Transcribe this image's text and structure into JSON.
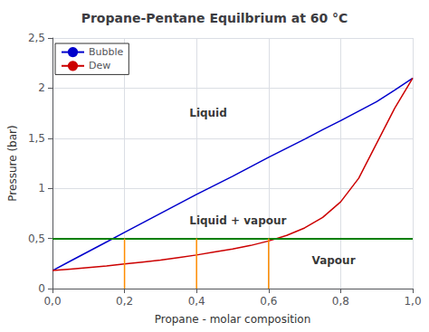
{
  "chart_data": {
    "type": "line",
    "title": "Propane-Pentane Equilbrium at 60 °C",
    "xlabel": "Propane - molar composition",
    "ylabel": "Pressure (bar)",
    "series": [
      {
        "name": "Bubble",
        "color": "#0000cc",
        "x": [
          0.0,
          0.05,
          0.1,
          0.15,
          0.2,
          0.25,
          0.3,
          0.35,
          0.4,
          0.45,
          0.5,
          0.55,
          0.6,
          0.65,
          0.7,
          0.75,
          0.8,
          0.85,
          0.9,
          0.95,
          1.0
        ],
        "values": [
          0.18,
          0.275,
          0.37,
          0.465,
          0.56,
          0.655,
          0.75,
          0.845,
          0.94,
          1.03,
          1.12,
          1.215,
          1.31,
          1.4,
          1.49,
          1.585,
          1.675,
          1.77,
          1.865,
          1.98,
          2.1
        ]
      },
      {
        "name": "Dew",
        "color": "#cc0000",
        "x": [
          0.0,
          0.05,
          0.1,
          0.15,
          0.2,
          0.25,
          0.3,
          0.35,
          0.4,
          0.45,
          0.5,
          0.55,
          0.6,
          0.65,
          0.7,
          0.75,
          0.8,
          0.85,
          0.9,
          0.95,
          1.0
        ],
        "values": [
          0.18,
          0.195,
          0.21,
          0.225,
          0.245,
          0.265,
          0.285,
          0.31,
          0.335,
          0.365,
          0.395,
          0.43,
          0.475,
          0.53,
          0.605,
          0.71,
          0.865,
          1.1,
          1.45,
          1.8,
          2.1
        ]
      }
    ],
    "hlines": [
      {
        "y": 0.5,
        "color": "#008000"
      }
    ],
    "vlines": {
      "x": [
        0.2,
        0.4,
        0.6
      ],
      "y_bottom": 0.0,
      "y_top": 0.5,
      "color": "#ff8c00"
    },
    "annotations": [
      {
        "text": "Liquid",
        "x": 0.38,
        "y": 1.75
      },
      {
        "text": "Liquid + vapour",
        "x": 0.38,
        "y": 0.68
      },
      {
        "text": "Vapour",
        "x": 0.72,
        "y": 0.28
      }
    ],
    "xlim": [
      0.0,
      1.0
    ],
    "ylim": [
      0.0,
      2.5
    ],
    "xticks": [
      {
        "value": 0.0,
        "label": "0,0"
      },
      {
        "value": 0.2,
        "label": "0,2"
      },
      {
        "value": 0.4,
        "label": "0,4"
      },
      {
        "value": 0.6,
        "label": "0,6"
      },
      {
        "value": 0.8,
        "label": "0,8"
      },
      {
        "value": 1.0,
        "label": "1,0"
      }
    ],
    "yticks": [
      0,
      {
        "value": 0.5,
        "label": "0,5"
      },
      1,
      {
        "value": 1.5,
        "label": "1,5"
      },
      2,
      {
        "value": 2.5,
        "label": "2,5"
      }
    ],
    "grid": true,
    "legend": "upper left"
  }
}
